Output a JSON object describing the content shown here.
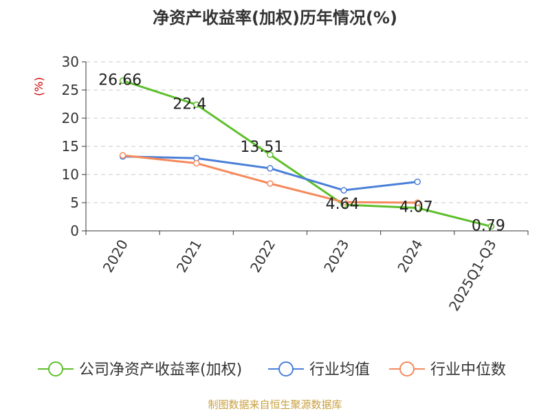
{
  "chart_data": {
    "type": "line",
    "title": "净资产收益率(加权)历年情况(%)",
    "ylabel": "(%)",
    "categories": [
      "2020",
      "2021",
      "2022",
      "2023",
      "2024",
      "2025Q1-Q3"
    ],
    "y_ticks": [
      "0",
      "5",
      "10",
      "15",
      "20",
      "25",
      "30"
    ],
    "ylim": [
      0,
      30
    ],
    "grid": true,
    "legend_position": "bottom",
    "series": [
      {
        "name": "公司净资产收益率(加权)",
        "color": "#5cbf2a",
        "values": [
          26.66,
          22.4,
          13.51,
          4.64,
          4.07,
          0.79
        ],
        "labels": [
          "26.66",
          "22.4",
          "13.51",
          "4.64",
          "4.07",
          "0.79"
        ]
      },
      {
        "name": "行业均值",
        "color": "#4a7fd8",
        "values": [
          13.2,
          12.9,
          11.1,
          7.2,
          8.7,
          null
        ]
      },
      {
        "name": "行业中位数",
        "color": "#f5895a",
        "values": [
          13.4,
          12.0,
          8.4,
          5.1,
          5.0,
          null
        ]
      }
    ]
  },
  "footer": {
    "source": "制图数据来自恒生聚源数据库"
  },
  "colors": {
    "axis": "#333333",
    "grid": "#c8c8c8",
    "ylabel": "#cc0000",
    "source": "#c8a040"
  }
}
